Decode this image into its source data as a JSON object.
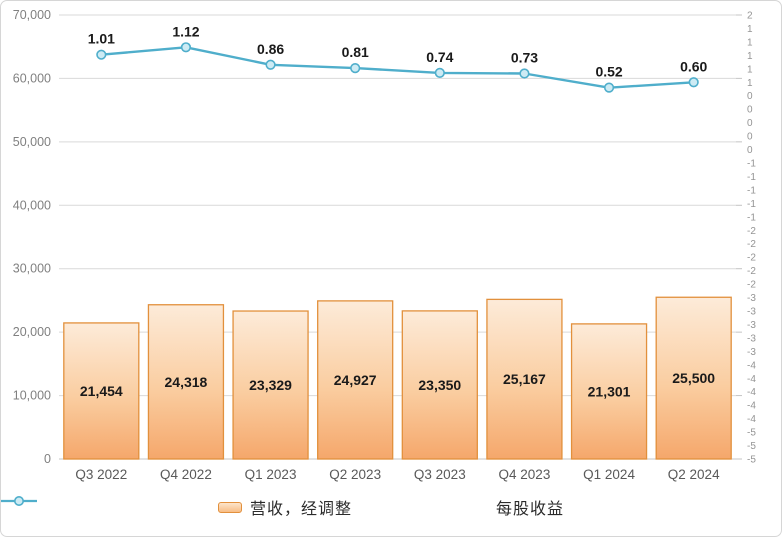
{
  "chart_data": {
    "type": "bar",
    "subtype": "combo-bar-line",
    "title": "",
    "categories": [
      "Q3 2022",
      "Q4 2022",
      "Q1 2023",
      "Q2 2023",
      "Q3 2023",
      "Q4 2023",
      "Q1 2024",
      "Q2 2024"
    ],
    "series": [
      {
        "name": "营收，经调整",
        "type": "bar",
        "axis": "primary",
        "values": [
          21454,
          24318,
          23329,
          24927,
          23350,
          25167,
          21301,
          25500
        ],
        "data_labels": [
          "21,454",
          "24,318",
          "23,329",
          "24,927",
          "23,350",
          "25,167",
          "21,301",
          "25,500"
        ]
      },
      {
        "name": "每股收益",
        "type": "line",
        "axis": "secondary",
        "values": [
          1.01,
          1.12,
          0.86,
          0.81,
          0.74,
          0.73,
          0.52,
          0.6
        ],
        "data_labels": [
          "1.01",
          "1.12",
          "0.86",
          "0.81",
          "0.74",
          "0.73",
          "0.52",
          "0.60"
        ]
      }
    ],
    "primary_axis": {
      "min": 0,
      "max": 70000,
      "step": 10000,
      "tick_labels": [
        "70,000",
        "60,000",
        "50,000",
        "40,000",
        "30,000",
        "20,000",
        "10,000",
        "0"
      ]
    },
    "secondary_axis": {
      "min": -5.0,
      "max": 1.6,
      "step": 0.2,
      "tick_labels": [
        "2",
        "1",
        "1",
        "1",
        "1",
        "1",
        "0",
        "0",
        "0",
        "0",
        "0",
        "-1",
        "-1",
        "-1",
        "-1",
        "-1",
        "-2",
        "-2",
        "-2",
        "-2",
        "-2",
        "-3",
        "-3",
        "-3",
        "-3",
        "-3",
        "-4",
        "-4",
        "-4",
        "-4",
        "-4",
        "-5",
        "-5",
        "-5"
      ]
    },
    "grid": true,
    "legend_position": "bottom",
    "colors": {
      "bar_fill_top": "#fdebd9",
      "bar_fill_mid": "#facda0",
      "bar_fill_bottom": "#f5a76b",
      "bar_border": "#e2903c",
      "line": "#4faecb",
      "marker_fill": "#cdebf4",
      "gridline": "#d9d9d9",
      "axis_line": "#c4c4c4",
      "axis_text": "#808080",
      "sec_axis_text": "#949494",
      "category_text": "#595959",
      "data_label_text": "#1a1a1a"
    }
  },
  "legend": {
    "items": [
      {
        "label": "营收，经调整"
      },
      {
        "label": "每股收益"
      }
    ]
  }
}
